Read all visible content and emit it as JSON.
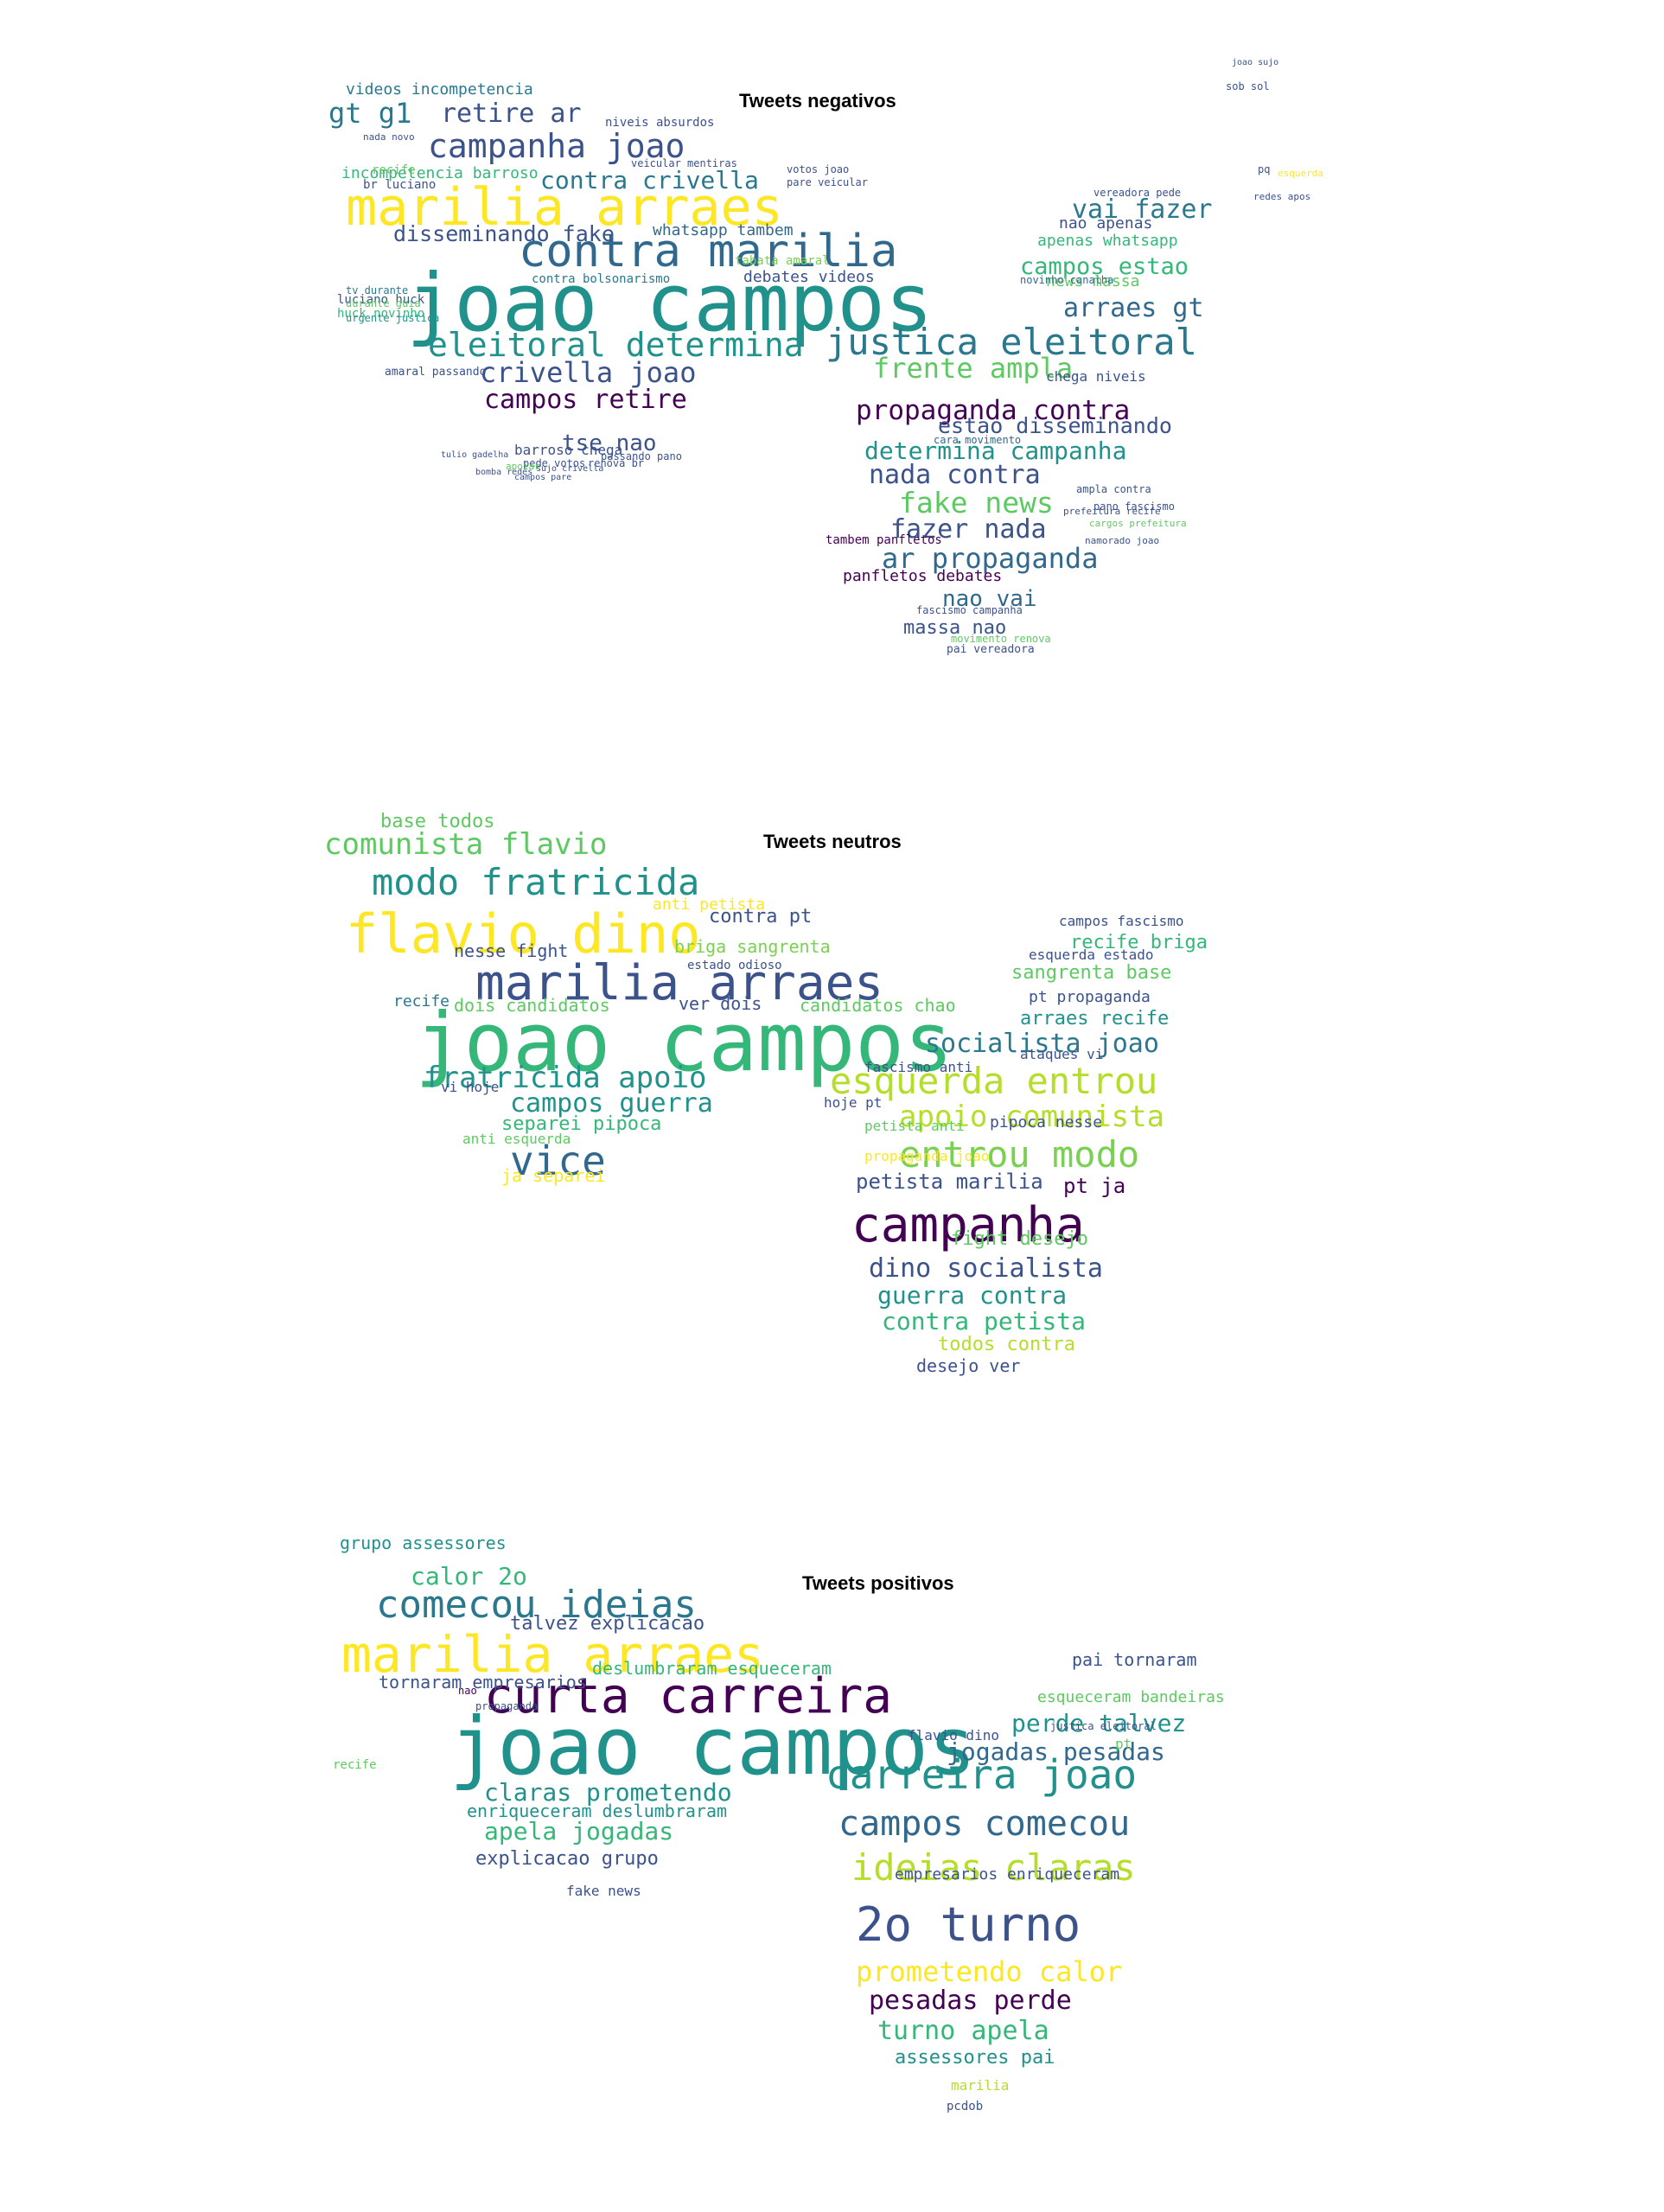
{
  "palette": [
    "#440154",
    "#3b528b",
    "#21918c",
    "#5ec962",
    "#fde725",
    "#2a788e",
    "#7ad151",
    "#31688e",
    "#35b779",
    "#482878"
  ],
  "clouds": [
    {
      "title": "Tweets negativos",
      "words": [
        {
          "text": "joao campos",
          "color": "#21918c"
        },
        {
          "text": "marilia arraes",
          "color": "#fde725"
        },
        {
          "text": "contra marilia",
          "color": "#31688e"
        },
        {
          "text": "justica eleitoral",
          "color": "#2a788e"
        },
        {
          "text": "eleitoral determina",
          "color": "#21918c"
        },
        {
          "text": "campanha joao",
          "color": "#3b528b"
        },
        {
          "text": "crivella joao",
          "color": "#3b528b"
        },
        {
          "text": "propaganda contra",
          "color": "#440154"
        },
        {
          "text": "campos retire",
          "color": "#440154"
        },
        {
          "text": "frente ampla",
          "color": "#5ec962"
        },
        {
          "text": "determina campanha",
          "color": "#21918c"
        },
        {
          "text": "ar propaganda",
          "color": "#31688e"
        },
        {
          "text": "fake news",
          "color": "#5ec962"
        },
        {
          "text": "fazer nada",
          "color": "#3b528b"
        },
        {
          "text": "nada contra",
          "color": "#3b528b"
        },
        {
          "text": "contra crivella",
          "color": "#2a788e"
        },
        {
          "text": "retire ar",
          "color": "#3b528b"
        },
        {
          "text": "gt g1",
          "color": "#2a788e"
        },
        {
          "text": "vai fazer",
          "color": "#2a788e"
        },
        {
          "text": "arraes gt",
          "color": "#31688e"
        },
        {
          "text": "campos estao",
          "color": "#35b779"
        },
        {
          "text": "tse nao",
          "color": "#3b528b"
        },
        {
          "text": "disseminando fake",
          "color": "#3b528b"
        },
        {
          "text": "estao disseminando",
          "color": "#3b528b"
        },
        {
          "text": "nao vai",
          "color": "#31688e"
        },
        {
          "text": "massa nao",
          "color": "#3b528b"
        },
        {
          "text": "panfletos debates",
          "color": "#440154"
        },
        {
          "text": "videos incompetencia",
          "color": "#2a788e"
        },
        {
          "text": "incompetencia barroso",
          "color": "#35b779"
        },
        {
          "text": "whatsapp tambem",
          "color": "#31688e"
        },
        {
          "text": "apenas whatsapp",
          "color": "#35b779"
        },
        {
          "text": "nao apenas",
          "color": "#3b528b"
        },
        {
          "text": "news massa",
          "color": "#5ec962"
        },
        {
          "text": "barroso chega",
          "color": "#3b528b"
        },
        {
          "text": "chega niveis",
          "color": "#3b528b"
        },
        {
          "text": "debates videos",
          "color": "#3b528b"
        },
        {
          "text": "tambem panfletos",
          "color": "#440154"
        },
        {
          "text": "niveis absurdos",
          "color": "#3b528b"
        },
        {
          "text": "br luciano",
          "color": "#3b528b"
        },
        {
          "text": "luciano huck",
          "color": "#3b528b"
        },
        {
          "text": "huck novinho",
          "color": "#35b779"
        },
        {
          "text": "contra bolsonarismo",
          "color": "#2a788e"
        },
        {
          "text": "amaral passando",
          "color": "#3b528b"
        },
        {
          "text": "passando pano",
          "color": "#3b528b"
        },
        {
          "text": "fascismo campanha",
          "color": "#3b528b"
        },
        {
          "text": "tv durante",
          "color": "#2a788e"
        },
        {
          "text": "durante guia",
          "color": "#5ec962"
        },
        {
          "text": "urgente justica",
          "color": "#21918c"
        },
        {
          "text": "tabata amaral",
          "color": "#7ad151"
        },
        {
          "text": "veicular mentiras",
          "color": "#3b528b"
        },
        {
          "text": "pede votos",
          "color": "#3b528b"
        },
        {
          "text": "renova br",
          "color": "#3b528b"
        },
        {
          "text": "pai vereadora",
          "color": "#3b528b"
        },
        {
          "text": "movimento renova",
          "color": "#5ec962"
        },
        {
          "text": "cara movimento",
          "color": "#31688e"
        },
        {
          "text": "novinho canalha",
          "color": "#31688e"
        },
        {
          "text": "vereadora pede",
          "color": "#3b528b"
        },
        {
          "text": "ampla contra",
          "color": "#3b528b"
        },
        {
          "text": "pano fascismo",
          "color": "#3b528b"
        },
        {
          "text": "namorado joao",
          "color": "#3b528b"
        },
        {
          "text": "cargos prefeitura",
          "color": "#5ec962"
        },
        {
          "text": "prefeitura recife",
          "color": "#3b528b"
        },
        {
          "text": "nada novo",
          "color": "#3b528b"
        },
        {
          "text": "recife",
          "color": "#5ec962"
        },
        {
          "text": "joao sujo",
          "color": "#3b528b"
        },
        {
          "text": "sob sol",
          "color": "#3b528b"
        },
        {
          "text": "pq",
          "color": "#3b528b"
        },
        {
          "text": "esquerda",
          "color": "#fde725"
        },
        {
          "text": "redes apos",
          "color": "#3b528b"
        },
        {
          "text": "votos joao",
          "color": "#3b528b"
        },
        {
          "text": "pare veicular",
          "color": "#3b528b"
        },
        {
          "text": "sujo crivella",
          "color": "#3b528b"
        },
        {
          "text": "tulio gadelha",
          "color": "#3b528b"
        },
        {
          "text": "bomba redes",
          "color": "#3b528b"
        },
        {
          "text": "campos pare",
          "color": "#3b528b"
        },
        {
          "text": "apoiar",
          "color": "#5ec962"
        }
      ]
    },
    {
      "title": "Tweets neutros",
      "words": [
        {
          "text": "joao campos",
          "color": "#35b779"
        },
        {
          "text": "marilia arraes",
          "color": "#3b528b"
        },
        {
          "text": "flavio dino",
          "color": "#fde725"
        },
        {
          "text": "modo fratricida",
          "color": "#21918c"
        },
        {
          "text": "comunista flavio",
          "color": "#5ec962"
        },
        {
          "text": "campanha",
          "color": "#440154"
        },
        {
          "text": "entrou modo",
          "color": "#7ad151"
        },
        {
          "text": "esquerda entrou",
          "color": "#b5de2b"
        },
        {
          "text": "apoio comunista",
          "color": "#b5de2b"
        },
        {
          "text": "fratricida apoio",
          "color": "#21918c"
        },
        {
          "text": "vice",
          "color": "#31688e"
        },
        {
          "text": "campos guerra",
          "color": "#21918c"
        },
        {
          "text": "socialista joao",
          "color": "#2a788e"
        },
        {
          "text": "dino socialista",
          "color": "#3b528b"
        },
        {
          "text": "guerra contra",
          "color": "#21918c"
        },
        {
          "text": "contra petista",
          "color": "#35b779"
        },
        {
          "text": "petista marilia",
          "color": "#3b528b"
        },
        {
          "text": "pt ja",
          "color": "#440154"
        },
        {
          "text": "todos contra",
          "color": "#b5de2b"
        },
        {
          "text": "desejo ver",
          "color": "#3b528b"
        },
        {
          "text": "base todos",
          "color": "#5ec962"
        },
        {
          "text": "separei pipoca",
          "color": "#35b779"
        },
        {
          "text": "ja separei",
          "color": "#fde725"
        },
        {
          "text": "contra pt",
          "color": "#3b528b"
        },
        {
          "text": "briga sangrenta",
          "color": "#7ad151"
        },
        {
          "text": "nesse fight",
          "color": "#3b528b"
        },
        {
          "text": "dois candidatos",
          "color": "#5ec962"
        },
        {
          "text": "ver dois",
          "color": "#3b528b"
        },
        {
          "text": "candidatos chao",
          "color": "#5ec962"
        },
        {
          "text": "recife briga",
          "color": "#35b779"
        },
        {
          "text": "sangrenta base",
          "color": "#5ec962"
        },
        {
          "text": "pt propaganda",
          "color": "#3b528b"
        },
        {
          "text": "arraes recife",
          "color": "#21918c"
        },
        {
          "text": "ataques vi",
          "color": "#3b528b"
        },
        {
          "text": "pipoca nesse",
          "color": "#3b528b"
        },
        {
          "text": "anti petista",
          "color": "#fde725"
        },
        {
          "text": "fascismo anti",
          "color": "#3b528b"
        },
        {
          "text": "fight desejo",
          "color": "#5ec962"
        },
        {
          "text": "propaganda joao",
          "color": "#fde725"
        },
        {
          "text": "campos fascismo",
          "color": "#3b528b"
        },
        {
          "text": "esquerda estado",
          "color": "#3b528b"
        },
        {
          "text": "vi hoje",
          "color": "#3b528b"
        },
        {
          "text": "hoje pt",
          "color": "#3b528b"
        },
        {
          "text": "anti esquerda",
          "color": "#5ec962"
        },
        {
          "text": "recife",
          "color": "#2a788e"
        },
        {
          "text": "estado odioso",
          "color": "#3b528b"
        },
        {
          "text": "petista anti",
          "color": "#5ec962"
        }
      ]
    },
    {
      "title": "Tweets positivos",
      "words": [
        {
          "text": "joao campos",
          "color": "#21918c"
        },
        {
          "text": "marilia arraes",
          "color": "#fde725"
        },
        {
          "text": "curta carreira",
          "color": "#440154"
        },
        {
          "text": "comecou ideias",
          "color": "#2a788e"
        },
        {
          "text": "carreira joao",
          "color": "#21918c"
        },
        {
          "text": "campos comecou",
          "color": "#31688e"
        },
        {
          "text": "ideias claras",
          "color": "#b5de2b"
        },
        {
          "text": "2o turno",
          "color": "#3b528b"
        },
        {
          "text": "prometendo calor",
          "color": "#fde725"
        },
        {
          "text": "pesadas perde",
          "color": "#440154"
        },
        {
          "text": "turno apela",
          "color": "#35b779"
        },
        {
          "text": "assessores pai",
          "color": "#21918c"
        },
        {
          "text": "jogadas pesadas",
          "color": "#31688e"
        },
        {
          "text": "perde talvez",
          "color": "#21918c"
        },
        {
          "text": "claras prometendo",
          "color": "#21918c"
        },
        {
          "text": "apela jogadas",
          "color": "#35b779"
        },
        {
          "text": "explicacao grupo",
          "color": "#3b528b"
        },
        {
          "text": "enriqueceram deslumbraram",
          "color": "#21918c"
        },
        {
          "text": "calor 2o",
          "color": "#35b779"
        },
        {
          "text": "grupo assessores",
          "color": "#21918c"
        },
        {
          "text": "talvez explicacao",
          "color": "#3b528b"
        },
        {
          "text": "tornaram empresarios",
          "color": "#3b528b"
        },
        {
          "text": "deslumbraram esqueceram",
          "color": "#35b779"
        },
        {
          "text": "pai tornaram",
          "color": "#3b528b"
        },
        {
          "text": "esqueceram bandeiras",
          "color": "#5ec962"
        },
        {
          "text": "empresarios enriqueceram",
          "color": "#3b528b"
        },
        {
          "text": "fake news",
          "color": "#3b528b"
        },
        {
          "text": "flavio dino",
          "color": "#3b528b"
        },
        {
          "text": "marilia",
          "color": "#b5de2b"
        },
        {
          "text": "pcdob",
          "color": "#3b528b"
        },
        {
          "text": "recife",
          "color": "#5ec962"
        },
        {
          "text": "pt",
          "color": "#5ec962"
        },
        {
          "text": "nao",
          "color": "#440154"
        },
        {
          "text": "justica eleitoral",
          "color": "#3b528b"
        },
        {
          "text": "propaganda",
          "color": "#3b528b"
        }
      ]
    }
  ]
}
